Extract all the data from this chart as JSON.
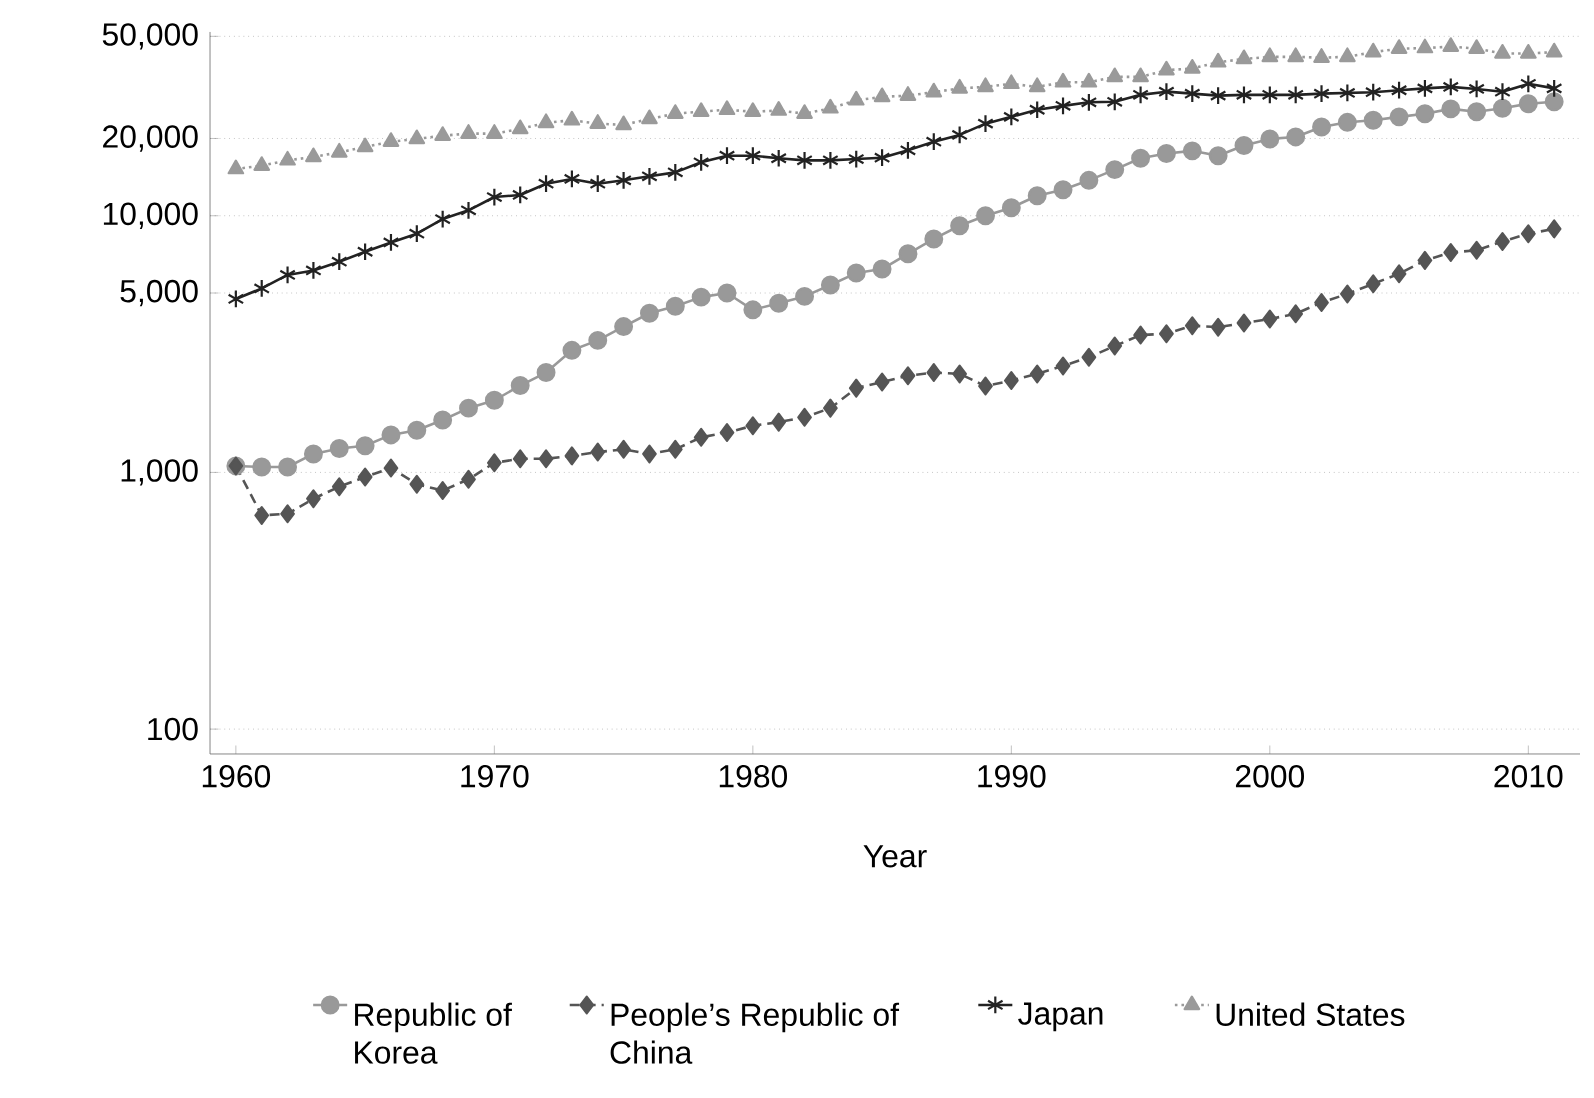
{
  "chart_data": {
    "type": "line",
    "xlabel": "Year",
    "log": "y",
    "grid": "y",
    "legend": "bottom",
    "x": [
      1960,
      1961,
      1962,
      1963,
      1964,
      1965,
      1966,
      1967,
      1968,
      1969,
      1970,
      1971,
      1972,
      1973,
      1974,
      1975,
      1976,
      1977,
      1978,
      1979,
      1980,
      1981,
      1982,
      1983,
      1984,
      1985,
      1986,
      1987,
      1988,
      1989,
      1990,
      1991,
      1992,
      1993,
      1994,
      1995,
      1996,
      1997,
      1998,
      1999,
      2000,
      2001,
      2002,
      2003,
      2004,
      2005,
      2006,
      2007,
      2008,
      2009,
      2010,
      2011
    ],
    "xlim": [
      1959,
      2012
    ],
    "xticks": [
      1960,
      1970,
      1980,
      1990,
      2000,
      2010
    ],
    "ylim": [
      80,
      52000
    ],
    "yticks": [
      {
        "value": 100,
        "label": "100"
      },
      {
        "value": 1000,
        "label": "1,000"
      },
      {
        "value": 5000,
        "label": "5,000"
      },
      {
        "value": 10000,
        "label": "10,000"
      },
      {
        "value": 20000,
        "label": "20,000"
      },
      {
        "value": 50000,
        "label": "50,000"
      }
    ],
    "series": [
      {
        "name": "Republic of Korea",
        "color": "#999999",
        "marker": "circle",
        "line_style": "solid",
        "values": [
          1060,
          1050,
          1050,
          1180,
          1240,
          1270,
          1400,
          1460,
          1600,
          1780,
          1910,
          2180,
          2450,
          2990,
          3270,
          3700,
          4170,
          4440,
          4820,
          5000,
          4300,
          4560,
          4850,
          5370,
          5980,
          6200,
          7110,
          8120,
          9140,
          10000,
          10750,
          11960,
          12620,
          13740,
          15130,
          16760,
          17470,
          17900,
          17140,
          18770,
          19920,
          20280,
          22180,
          23120,
          23550,
          24280,
          24980,
          26080,
          25430,
          26230,
          27310,
          27800
        ]
      },
      {
        "name": "People’s Republic of China",
        "color": "#555555",
        "marker": "diamond",
        "line_style": "dashed",
        "values": [
          1060,
          680,
          690,
          790,
          880,
          960,
          1040,
          900,
          850,
          940,
          1090,
          1130,
          1130,
          1160,
          1200,
          1230,
          1180,
          1230,
          1370,
          1430,
          1520,
          1570,
          1640,
          1780,
          2130,
          2250,
          2380,
          2450,
          2420,
          2170,
          2280,
          2420,
          2600,
          2810,
          3110,
          3430,
          3470,
          3730,
          3680,
          3820,
          3960,
          4150,
          4590,
          4960,
          5430,
          5940,
          6700,
          7190,
          7340,
          7940,
          8510,
          8890
        ]
      },
      {
        "name": "Japan",
        "color": "#222222",
        "marker": "cross",
        "line_style": "solid",
        "values": [
          4740,
          5210,
          5880,
          6120,
          6620,
          7240,
          7870,
          8510,
          9710,
          10500,
          11830,
          12050,
          13330,
          13910,
          13330,
          13740,
          14250,
          14760,
          16150,
          17140,
          17140,
          16750,
          16440,
          16440,
          16630,
          16830,
          17990,
          19440,
          20650,
          22850,
          24280,
          25880,
          26800,
          27670,
          27800,
          29580,
          30440,
          29900,
          29380,
          29580,
          29580,
          29580,
          29900,
          30100,
          30300,
          30830,
          31350,
          31770,
          31190,
          30440,
          32660,
          31350
        ]
      },
      {
        "name": "United States",
        "color": "#9a9a9a",
        "marker": "triangle",
        "line_style": "dotted",
        "values": [
          15210,
          15670,
          16440,
          16950,
          17660,
          18540,
          19440,
          19920,
          20510,
          20890,
          20890,
          21790,
          23010,
          23550,
          22850,
          22590,
          23840,
          24980,
          25430,
          25880,
          25430,
          25700,
          24980,
          26230,
          28180,
          29040,
          29380,
          30300,
          31350,
          31770,
          32660,
          31770,
          33110,
          33110,
          34750,
          34750,
          36900,
          37500,
          39630,
          40830,
          41590,
          41590,
          41300,
          41590,
          43390,
          44770,
          45000,
          45580,
          44770,
          42890,
          42890,
          43390
        ]
      }
    ]
  }
}
